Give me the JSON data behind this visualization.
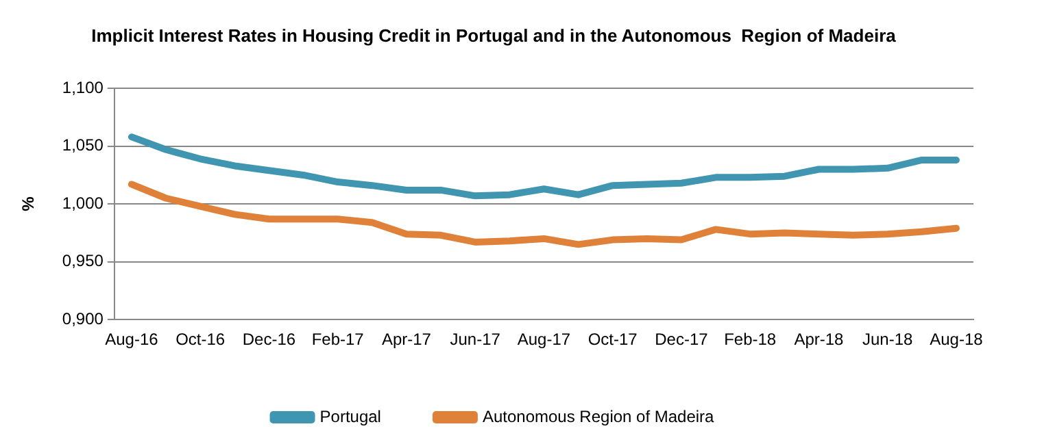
{
  "chart_data": {
    "type": "line",
    "title": "Implicit Interest Rates in Housing Credit in Portugal and in the Autonomous  Region of Madeira",
    "ylabel": "%",
    "categories": [
      "Aug-16",
      null,
      "Oct-16",
      null,
      "Dec-16",
      null,
      "Feb-17",
      null,
      "Apr-17",
      null,
      "Jun-17",
      null,
      "Aug-17",
      null,
      "Oct-17",
      null,
      "Dec-17",
      null,
      "Feb-18",
      null,
      "Apr-18",
      null,
      "Jun-18",
      null,
      "Aug-18"
    ],
    "series": [
      {
        "name": "Portugal",
        "color": "#4095b0",
        "values": [
          1.058,
          1.047,
          1.039,
          1.033,
          1.029,
          1.025,
          1.019,
          1.016,
          1.012,
          1.012,
          1.007,
          1.008,
          1.013,
          1.008,
          1.016,
          1.017,
          1.018,
          1.023,
          1.023,
          1.024,
          1.03,
          1.03,
          1.031,
          1.038,
          1.038
        ]
      },
      {
        "name": "Autonomous Region of Madeira",
        "color": "#e0813a",
        "values": [
          1.017,
          1.005,
          0.998,
          0.991,
          0.987,
          0.987,
          0.987,
          0.984,
          0.974,
          0.973,
          0.967,
          0.968,
          0.97,
          0.965,
          0.969,
          0.97,
          0.969,
          0.978,
          0.974,
          0.975,
          0.974,
          0.973,
          0.974,
          0.976,
          0.979
        ]
      }
    ],
    "ylim": [
      0.9,
      1.1
    ],
    "yticks": [
      {
        "value": 0.9,
        "label": "0,900"
      },
      {
        "value": 0.95,
        "label": "0,950"
      },
      {
        "value": 1.0,
        "label": "1,000"
      },
      {
        "value": 1.05,
        "label": "1,050"
      },
      {
        "value": 1.1,
        "label": "1,100"
      }
    ],
    "grid": "y",
    "legend": "bottom",
    "marker": "none",
    "line_style": "solid"
  }
}
